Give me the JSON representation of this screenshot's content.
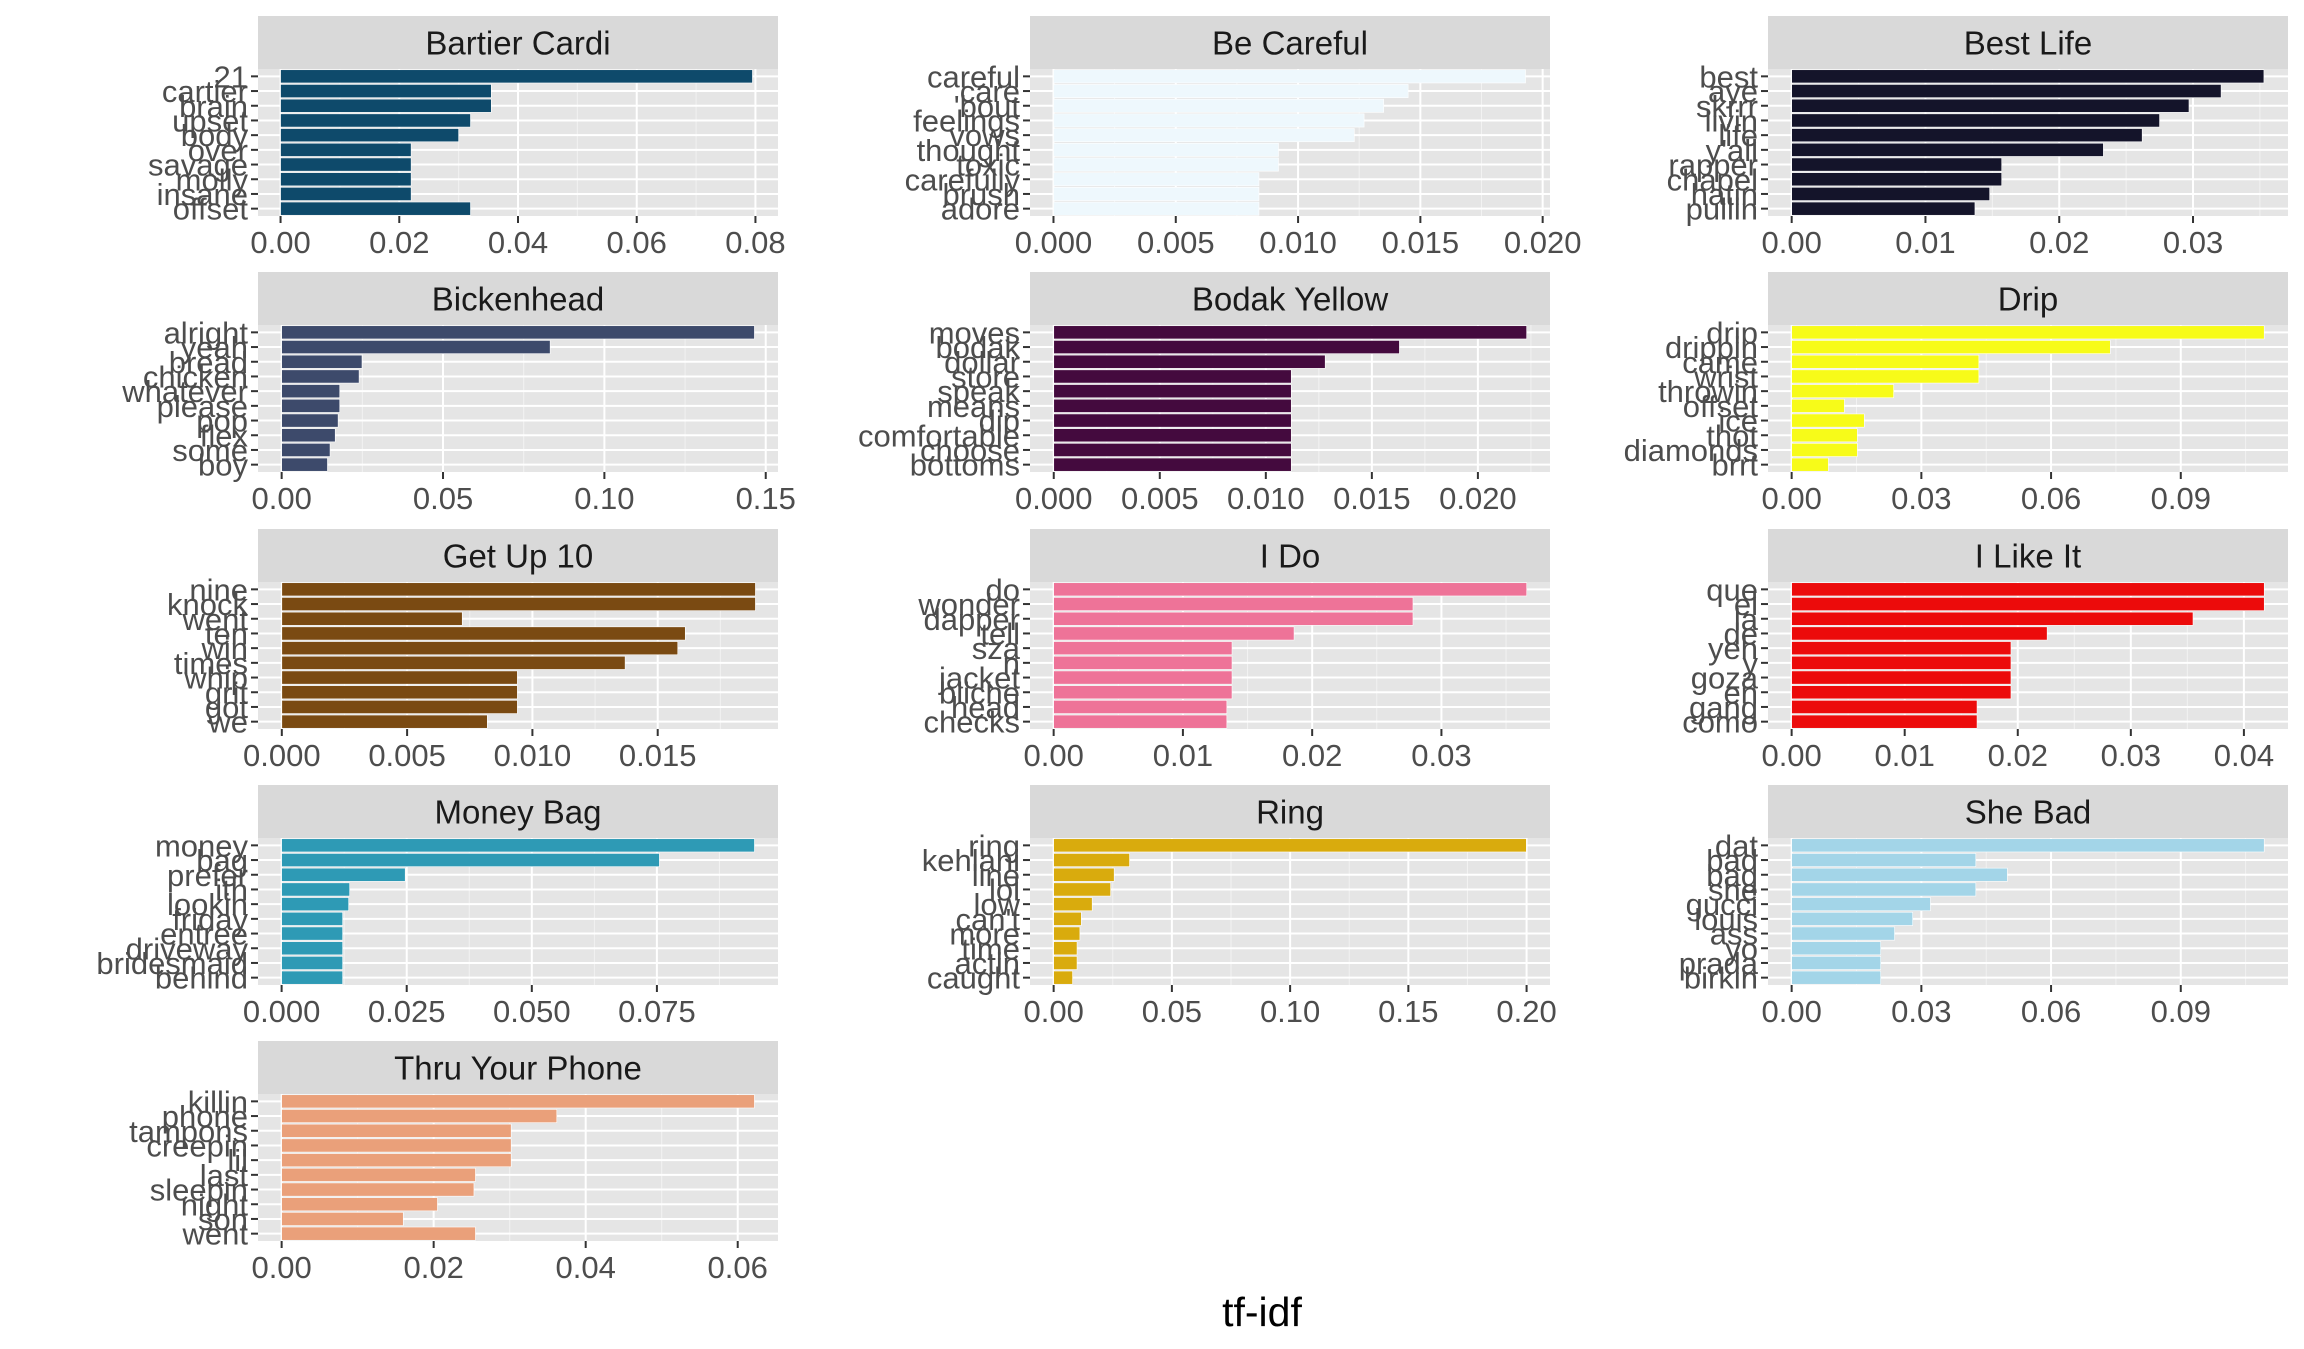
{
  "chart_data": {
    "type": "bar",
    "orientation": "horizontal",
    "layout": "facet_wrap 3 columns, free scales",
    "xlabel": "tf-idf",
    "ylabel": "",
    "grid": true,
    "legend": "none",
    "panel_background": "#e5e5e5",
    "strip_background": "#d9d9d9",
    "panels": [
      {
        "title": "Bartier Cardi",
        "color": "#0e4a6b",
        "categories": [
          "21",
          "cartier",
          "brain",
          "upset",
          "body",
          "over",
          "savage",
          "molly",
          "insane",
          "offset"
        ],
        "values": [
          0.0795,
          0.0355,
          0.0355,
          0.032,
          0.03,
          0.022,
          0.022,
          0.022,
          0.022,
          0.032
        ],
        "xlim": [
          -0.0038,
          0.0838
        ],
        "ticks": [
          0.0,
          0.02,
          0.04,
          0.06,
          0.08
        ],
        "tick_labels": [
          "0.00",
          "0.02",
          "0.04",
          "0.06",
          "0.08"
        ]
      },
      {
        "title": "Be Careful",
        "color": "#eef8fd",
        "categories": [
          "careful",
          "care",
          "'bout",
          "feelings",
          "vows",
          "thought",
          "toxic",
          "carefully",
          "brush",
          "adore"
        ],
        "values": [
          0.0193,
          0.0145,
          0.0135,
          0.0127,
          0.0123,
          0.0092,
          0.0092,
          0.0084,
          0.0084,
          0.0084
        ],
        "xlim": [
          -0.00096,
          0.0203
        ],
        "ticks": [
          0.0,
          0.005,
          0.01,
          0.015,
          0.02
        ],
        "tick_labels": [
          "0.000",
          "0.005",
          "0.010",
          "0.015",
          "0.020"
        ]
      },
      {
        "title": "Best Life",
        "color": "#14142a",
        "categories": [
          "best",
          "aye",
          "skrrr",
          "livin",
          "life",
          "y'all",
          "rapper",
          "chapel",
          "hatin",
          "pullin"
        ],
        "values": [
          0.0353,
          0.0321,
          0.0297,
          0.0275,
          0.0262,
          0.0233,
          0.0157,
          0.0157,
          0.0148,
          0.0137
        ],
        "xlim": [
          -0.00177,
          0.0371
        ],
        "ticks": [
          0.0,
          0.01,
          0.02,
          0.03
        ],
        "tick_labels": [
          "0.00",
          "0.01",
          "0.02",
          "0.03"
        ]
      },
      {
        "title": "Bickenhead",
        "color": "#3d4a6b",
        "categories": [
          "alright",
          "yeah",
          "bread",
          "chicken",
          "whatever",
          "please",
          "pop",
          "flex",
          "some",
          "boy"
        ],
        "values": [
          0.1465,
          0.0832,
          0.0249,
          0.024,
          0.018,
          0.018,
          0.0175,
          0.0166,
          0.015,
          0.0142
        ],
        "xlim": [
          -0.00733,
          0.1538
        ],
        "ticks": [
          0.0,
          0.05,
          0.1,
          0.15
        ],
        "tick_labels": [
          "0.00",
          "0.05",
          "0.10",
          "0.15"
        ]
      },
      {
        "title": "Bodak Yellow",
        "color": "#440a3e",
        "categories": [
          "moves",
          "bodak",
          "dollar",
          "store",
          "speak",
          "means",
          "dip",
          "comfortable",
          "choose",
          "bottoms"
        ],
        "values": [
          0.0223,
          0.0163,
          0.0128,
          0.0112,
          0.0112,
          0.0112,
          0.0112,
          0.0112,
          0.0112,
          0.0112
        ],
        "xlim": [
          -0.00112,
          0.0234
        ],
        "ticks": [
          0.0,
          0.005,
          0.01,
          0.015,
          0.02
        ],
        "tick_labels": [
          "0.000",
          "0.005",
          "0.010",
          "0.015",
          "0.020"
        ]
      },
      {
        "title": "Drip",
        "color": "#f7fb19",
        "categories": [
          "drip",
          "drippin",
          "came",
          "wrist",
          "throwin",
          "offset",
          "ice",
          "thot",
          "diamonds",
          "brrt"
        ],
        "values": [
          0.1093,
          0.0737,
          0.0433,
          0.0433,
          0.0236,
          0.0122,
          0.0168,
          0.0152,
          0.0152,
          0.0085
        ],
        "xlim": [
          -0.00547,
          0.1148
        ],
        "ticks": [
          0.0,
          0.03,
          0.06,
          0.09
        ],
        "tick_labels": [
          "0.00",
          "0.03",
          "0.06",
          "0.09"
        ]
      },
      {
        "title": "Get Up 10",
        "color": "#7a4a12",
        "categories": [
          "nine",
          "knock",
          "went",
          "ten",
          "win",
          "times",
          "whip",
          "grit",
          "got",
          "we"
        ],
        "values": [
          0.0189,
          0.0189,
          0.0072,
          0.0161,
          0.0158,
          0.0137,
          0.0094,
          0.0094,
          0.0094,
          0.0082
        ],
        "xlim": [
          -0.00095,
          0.0198
        ],
        "ticks": [
          0.0,
          0.005,
          0.01,
          0.015
        ],
        "tick_labels": [
          "0.000",
          "0.005",
          "0.010",
          "0.015"
        ]
      },
      {
        "title": "I Do",
        "color": "#ee7398",
        "categories": [
          "do",
          "wonder",
          "dapper",
          "tell",
          "sza",
          "n",
          "jacket",
          "bliche",
          "head",
          "checks"
        ],
        "values": [
          0.0366,
          0.0278,
          0.0278,
          0.0186,
          0.0138,
          0.0138,
          0.0138,
          0.0138,
          0.0134,
          0.0134
        ],
        "xlim": [
          -0.00183,
          0.0384
        ],
        "ticks": [
          0.0,
          0.01,
          0.02,
          0.03
        ],
        "tick_labels": [
          "0.00",
          "0.01",
          "0.02",
          "0.03"
        ]
      },
      {
        "title": "I Like It",
        "color": "#ec0b0b",
        "categories": [
          "que",
          "el",
          "la",
          "de",
          "yeh",
          "y",
          "goza",
          "en",
          "gang",
          "como"
        ],
        "values": [
          0.0418,
          0.0418,
          0.0355,
          0.0226,
          0.0194,
          0.0194,
          0.0194,
          0.0194,
          0.0164,
          0.0164
        ],
        "xlim": [
          -0.00209,
          0.0439
        ],
        "ticks": [
          0.0,
          0.01,
          0.02,
          0.03,
          0.04
        ],
        "tick_labels": [
          "0.00",
          "0.01",
          "0.02",
          "0.03",
          "0.04"
        ]
      },
      {
        "title": "Money Bag",
        "color": "#2e9ab5",
        "categories": [
          "money",
          "bag",
          "prefer",
          "ith",
          "lookin",
          "friday",
          "entree",
          "driveway",
          "bridesmaid",
          "behind"
        ],
        "values": [
          0.0945,
          0.0755,
          0.0247,
          0.0136,
          0.0134,
          0.0122,
          0.0122,
          0.0122,
          0.0122,
          0.0122
        ],
        "xlim": [
          -0.00472,
          0.0992
        ],
        "ticks": [
          0.0,
          0.025,
          0.05,
          0.075
        ],
        "tick_labels": [
          "0.000",
          "0.025",
          "0.050",
          "0.075"
        ]
      },
      {
        "title": "Ring",
        "color": "#d9ab0d",
        "categories": [
          "ring",
          "kehlani",
          "line",
          "lol",
          "low",
          "can't",
          "more",
          "time",
          "actin",
          "caught"
        ],
        "values": [
          0.1999,
          0.0321,
          0.0256,
          0.0241,
          0.0163,
          0.0117,
          0.0111,
          0.0099,
          0.0099,
          0.008
        ],
        "xlim": [
          -0.01,
          0.2099
        ],
        "ticks": [
          0.0,
          0.05,
          0.1,
          0.15,
          0.2
        ],
        "tick_labels": [
          "0.00",
          "0.05",
          "0.10",
          "0.15",
          "0.20"
        ]
      },
      {
        "title": "She Bad",
        "color": "#a3d5e8",
        "categories": [
          "dat",
          "bad",
          "bag",
          "she",
          "gucci",
          "louis",
          "ass",
          "yo",
          "prada",
          "birkin"
        ],
        "values": [
          0.1093,
          0.0426,
          0.0499,
          0.0426,
          0.0321,
          0.028,
          0.0238,
          0.0206,
          0.0206,
          0.0206
        ],
        "xlim": [
          -0.00547,
          0.1148
        ],
        "ticks": [
          0.0,
          0.03,
          0.06,
          0.09
        ],
        "tick_labels": [
          "0.00",
          "0.03",
          "0.06",
          "0.09"
        ]
      },
      {
        "title": "Thru Your Phone",
        "color": "#eaa07a",
        "categories": [
          "killin",
          "phone",
          "tampons",
          "creepin",
          "lil",
          "last",
          "sleepin",
          "night",
          "son",
          "went"
        ],
        "values": [
          0.0622,
          0.0362,
          0.0302,
          0.0302,
          0.0302,
          0.0255,
          0.0253,
          0.0205,
          0.016,
          0.0255
        ],
        "xlim": [
          -0.00311,
          0.0653
        ],
        "ticks": [
          0.0,
          0.02,
          0.04,
          0.06
        ],
        "tick_labels": [
          "0.00",
          "0.02",
          "0.04",
          "0.06"
        ]
      }
    ]
  }
}
